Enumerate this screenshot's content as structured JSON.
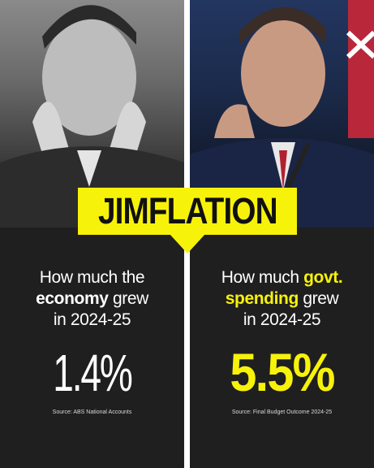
{
  "banner": {
    "title": "JIMFLATION"
  },
  "left": {
    "line1": "How much the",
    "highlight": "economy",
    "line2_rest": " grew",
    "line3": "in 2024-25",
    "value": "1.4%",
    "source": "Source: ABS National Accounts",
    "photo_style": "black-and-white"
  },
  "right": {
    "line1_pre": "How much ",
    "highlight1": "govt.",
    "highlight2": "spending",
    "line2_rest": " grew",
    "line3": "in 2024-25",
    "value": "5.5%",
    "source": "Source: Final Budget Outcome 2024-25",
    "photo_style": "color"
  },
  "colors": {
    "accent_yellow": "#f7f20a",
    "background": "#1f1f20",
    "text": "#ffffff",
    "divider": "#ffffff"
  }
}
